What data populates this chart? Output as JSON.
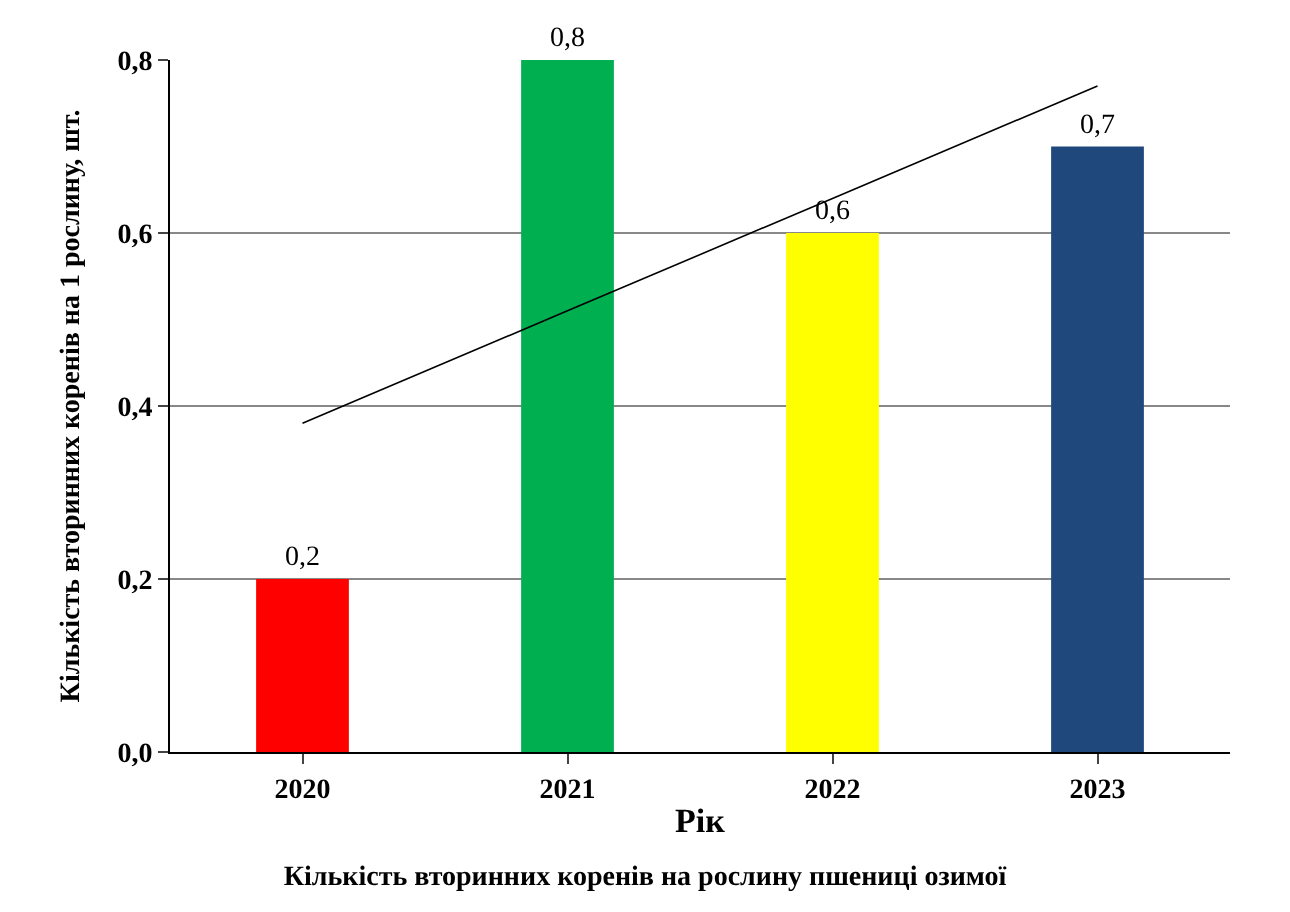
{
  "chart_data": {
    "type": "bar",
    "title": "Кількість вторинних коренів на рослину пшениці озимої",
    "xlabel": "Рік",
    "ylabel": "Кількість вторинних коренів на 1 рослину, шт.",
    "categories": [
      "2020",
      "2021",
      "2022",
      "2023"
    ],
    "series": [
      {
        "colors": [
          "#ff0000",
          "#00b050",
          "#ffff00",
          "#1f497d"
        ],
        "values": [
          0.2,
          0.8,
          0.6,
          0.7
        ],
        "value_labels": [
          "0,2",
          "0,8",
          "0,6",
          "0,7"
        ]
      },
      {
        "type": "line",
        "color": "#000000",
        "values": [
          0.38,
          0.51,
          0.64,
          0.77
        ]
      }
    ],
    "ylim": [
      0,
      0.8
    ],
    "yticks": [
      {
        "value": 0,
        "label": "0,0"
      },
      {
        "value": 0.2,
        "label": "0,2"
      },
      {
        "value": 0.4,
        "label": "0,4"
      },
      {
        "value": 0.6,
        "label": "0,6"
      },
      {
        "value": 0.8,
        "label": "0,8"
      }
    ],
    "grid": "y"
  }
}
